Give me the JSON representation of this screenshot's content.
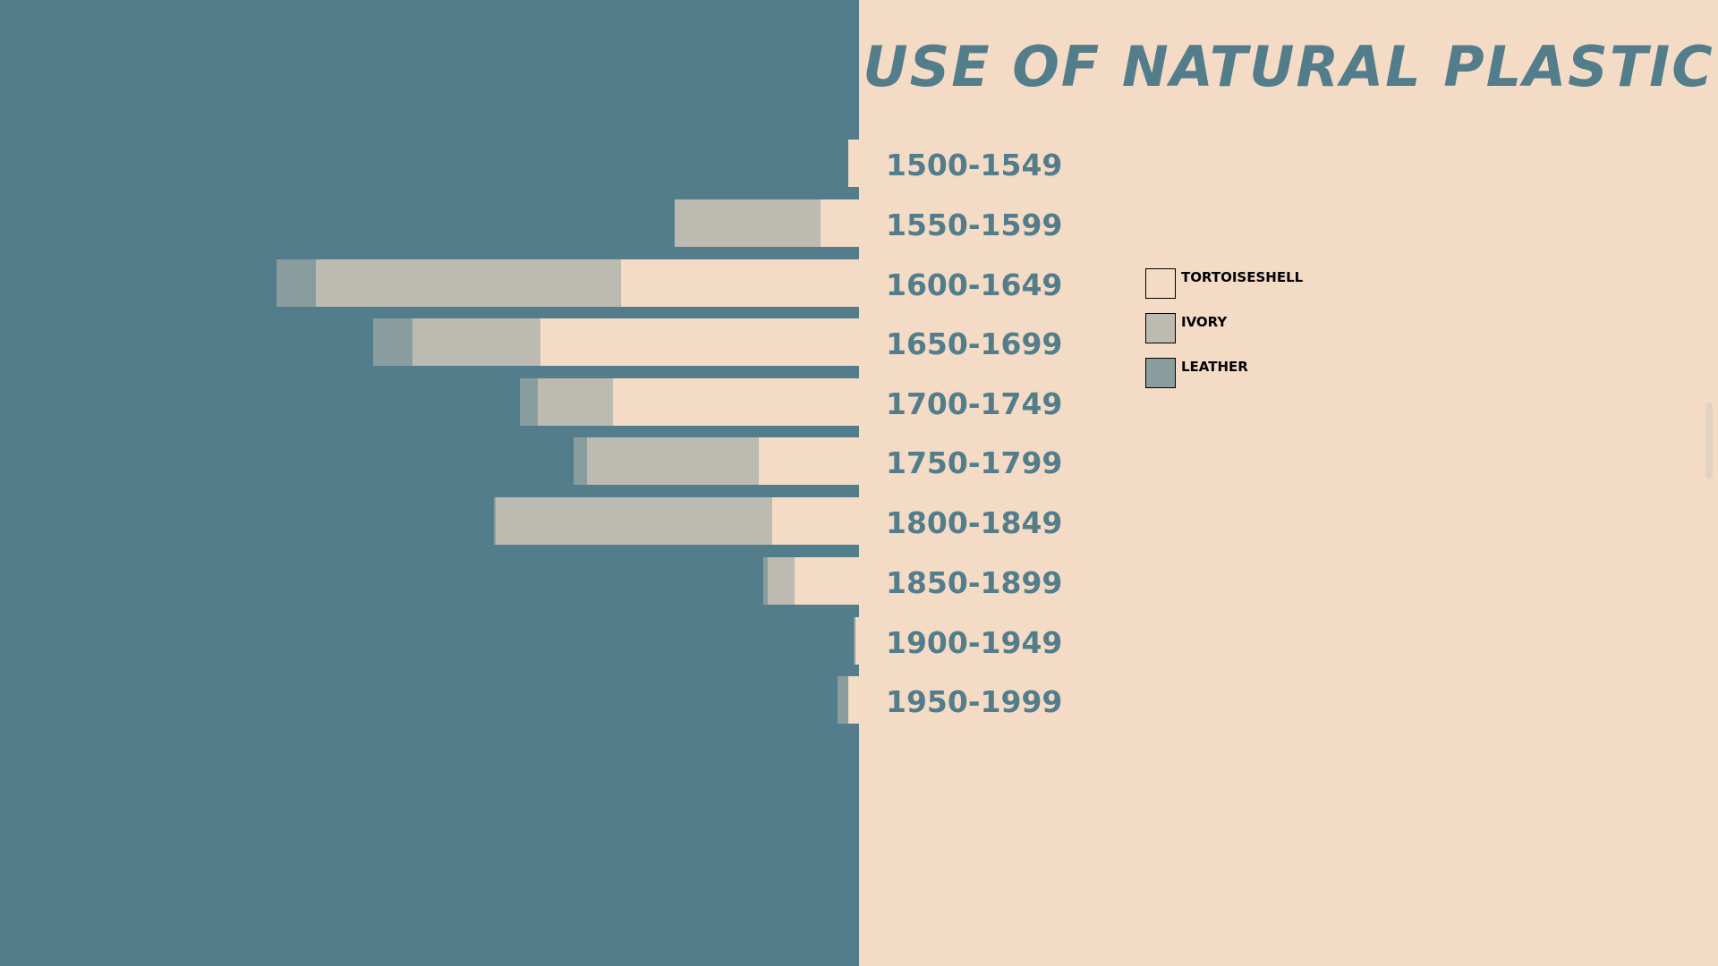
{
  "colors": {
    "left_background": "#537D8A",
    "right_background": "#F3DBC6",
    "tortoiseshell": "#F3DBC6",
    "ivory": "#BDBAB1",
    "leather": "#8A9D9E",
    "title": "#537D8A"
  },
  "chart_data": {
    "type": "bar",
    "orientation": "horizontal",
    "stacked": true,
    "title": "USE OF NATURAL PLASTIC",
    "categories": [
      "1500-1549",
      "1550-1599",
      "1600-1649",
      "1650-1699",
      "1700-1749",
      "1750-1799",
      "1800-1849",
      "1850-1899",
      "1900-1949",
      "1950-1999"
    ],
    "series": [
      {
        "name": "TORTOISESHELL",
        "values": [
          12,
          43,
          266,
          356,
          275,
          112,
          97,
          72,
          4,
          12
        ]
      },
      {
        "name": "IVORY",
        "values": [
          0,
          163,
          341,
          143,
          84,
          192,
          309,
          30,
          0,
          0
        ]
      },
      {
        "name": "LEATHER",
        "values": [
          0,
          0,
          44,
          44,
          20,
          15,
          2,
          5,
          2,
          12
        ]
      }
    ],
    "xlim": [
      0,
      960
    ],
    "grid": false,
    "legend_position": "middle-right"
  },
  "legend": {
    "items": [
      {
        "label": "TORTOISESHELL"
      },
      {
        "label": "IVORY"
      },
      {
        "label": "LEATHER"
      }
    ]
  }
}
